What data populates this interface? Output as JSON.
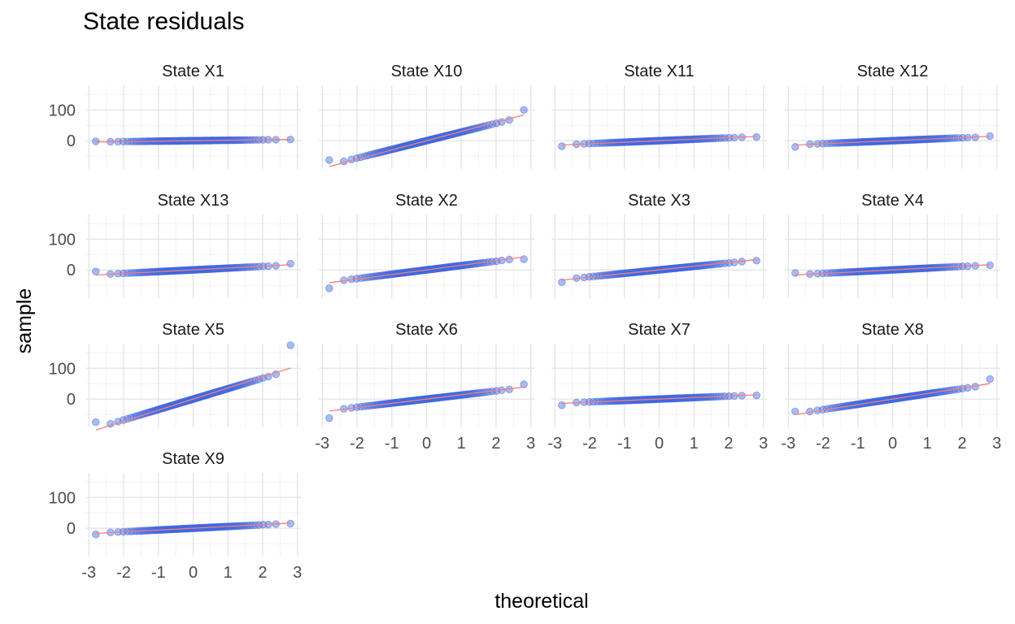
{
  "chart_data": {
    "type": "scatter",
    "title": "State residuals",
    "xlabel": "theoretical",
    "ylabel": "sample",
    "xlim": [
      -3.1,
      3.1
    ],
    "ylim": [
      -92,
      180
    ],
    "x_ticks": [
      -3,
      -2,
      -1,
      0,
      1,
      2,
      3
    ],
    "y_ticks": [
      0,
      100
    ],
    "grid": true,
    "facet_layout": {
      "columns": 4,
      "rows": 4
    },
    "point_color": "#4169e1",
    "line_color": "#f08080",
    "panels": [
      {
        "label": "State X1",
        "slope": 1.5,
        "lowest": -2,
        "highest": 4,
        "min_x": -2.8,
        "max_x": 2.8
      },
      {
        "label": "State X10",
        "slope": 30,
        "lowest": -63,
        "highest": 100,
        "min_x": -2.8,
        "max_x": 2.8
      },
      {
        "label": "State X11",
        "slope": 5,
        "lowest": -18,
        "highest": 12,
        "min_x": -2.8,
        "max_x": 2.8
      },
      {
        "label": "State X12",
        "slope": 5,
        "lowest": -20,
        "highest": 15,
        "min_x": -2.8,
        "max_x": 2.8
      },
      {
        "label": "State X13",
        "slope": 6,
        "lowest": -5,
        "highest": 20,
        "min_x": -2.8,
        "max_x": 2.8
      },
      {
        "label": "State X2",
        "slope": 15,
        "lowest": -60,
        "highest": 35,
        "min_x": -2.8,
        "max_x": 2.8
      },
      {
        "label": "State X3",
        "slope": 12,
        "lowest": -40,
        "highest": 30,
        "min_x": -2.8,
        "max_x": 2.8
      },
      {
        "label": "State X4",
        "slope": 6,
        "lowest": -10,
        "highest": 15,
        "min_x": -2.8,
        "max_x": 2.8
      },
      {
        "label": "State X5",
        "slope": 36,
        "lowest": -75,
        "highest": 175,
        "min_x": -2.8,
        "max_x": 2.8
      },
      {
        "label": "State X6",
        "slope": 14,
        "lowest": -62,
        "highest": 48,
        "min_x": -2.8,
        "max_x": 2.8
      },
      {
        "label": "State X7",
        "slope": 5,
        "lowest": -20,
        "highest": 12,
        "min_x": -2.8,
        "max_x": 2.8
      },
      {
        "label": "State X8",
        "slope": 18,
        "lowest": -40,
        "highest": 65,
        "min_x": -2.8,
        "max_x": 2.8
      },
      {
        "label": "State X9",
        "slope": 6,
        "lowest": -20,
        "highest": 15,
        "min_x": -2.8,
        "max_x": 2.8
      }
    ]
  }
}
